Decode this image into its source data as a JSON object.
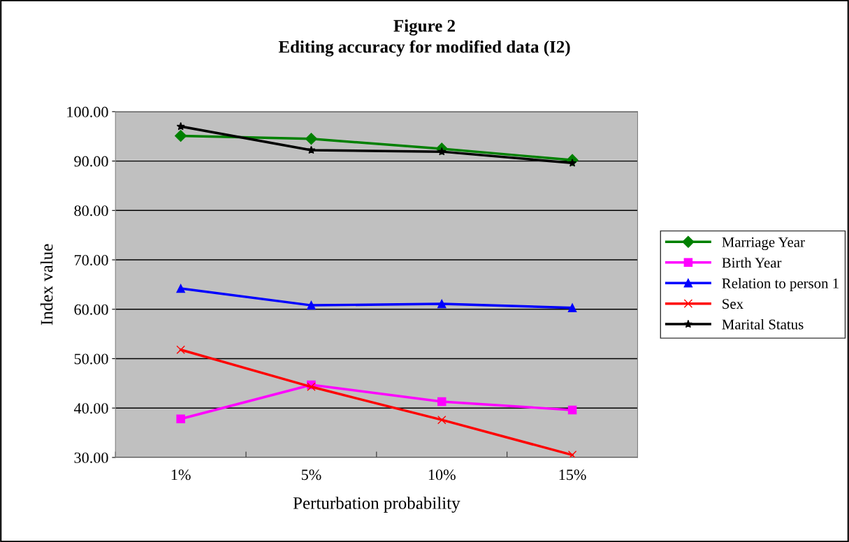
{
  "chart_data": {
    "type": "line",
    "title": "Figure 2\nEditing accuracy for modified data (I2)",
    "xlabel": "Perturbation probability",
    "ylabel": "Index value",
    "categories": [
      "1%",
      "5%",
      "10%",
      "15%"
    ],
    "series": [
      {
        "name": "Marriage Year",
        "color": "#008000",
        "marker": "diamond",
        "values": [
          95.1,
          94.5,
          92.5,
          90.2
        ]
      },
      {
        "name": "Birth Year",
        "color": "#ff00ff",
        "marker": "square",
        "values": [
          37.8,
          44.7,
          41.3,
          39.6
        ]
      },
      {
        "name": "Relation to person 1",
        "color": "#0000ff",
        "marker": "triangle",
        "values": [
          64.2,
          60.8,
          61.1,
          60.3
        ]
      },
      {
        "name": "Sex",
        "color": "#ff0000",
        "marker": "cross",
        "values": [
          51.8,
          44.3,
          37.6,
          30.5
        ]
      },
      {
        "name": "Marital Status",
        "color": "#000000",
        "marker": "star",
        "values": [
          97.0,
          92.2,
          91.9,
          89.6
        ]
      }
    ],
    "ylim": [
      30,
      100
    ],
    "yticks": [
      {
        "value": 30,
        "label": "30.00"
      },
      {
        "value": 40,
        "label": "40.00"
      },
      {
        "value": 50,
        "label": "50.00"
      },
      {
        "value": 60,
        "label": "60.00"
      },
      {
        "value": 70,
        "label": "70.00"
      },
      {
        "value": 80,
        "label": "80.00"
      },
      {
        "value": 90,
        "label": "90.00"
      },
      {
        "value": 100,
        "label": "100.00"
      }
    ],
    "grid": "y",
    "legend": "right",
    "line_style": "solid"
  }
}
